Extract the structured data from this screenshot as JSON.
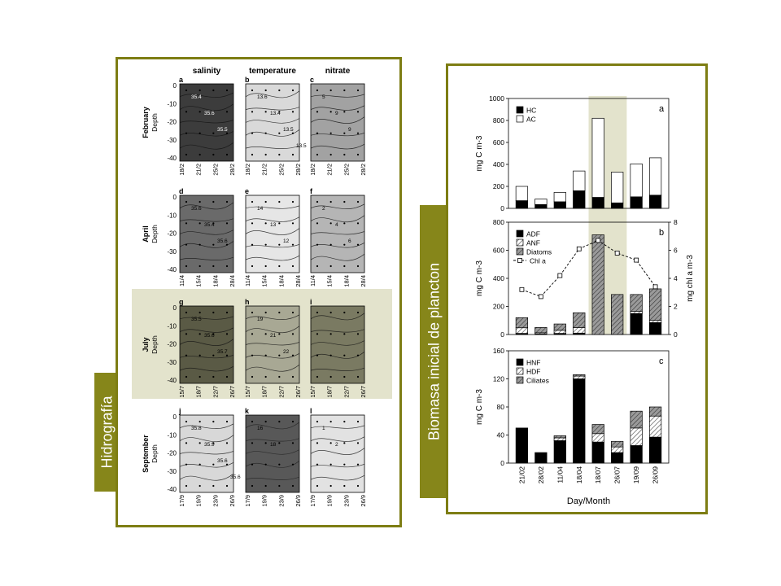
{
  "hydro": {
    "tag": "Hidrografía",
    "columns": [
      "salinity",
      "temperature",
      "nitrate"
    ],
    "axis_label": "Depth",
    "depth_ticks": [
      "0",
      "-10",
      "-20",
      "-30",
      "-40"
    ],
    "rows": [
      {
        "month": "February",
        "panels": [
          "a",
          "b",
          "c"
        ],
        "dates": [
          "18/2",
          "21/2",
          "25/2",
          "28/2"
        ],
        "shades": [
          "#3c3c3c",
          "#d9d9d9",
          "#a2a2a2"
        ],
        "contours": [
          [
            "35.4",
            "35.6",
            "35.5"
          ],
          [
            "13.6",
            "13.4",
            "13.5",
            "13.5"
          ],
          [
            "5",
            "9",
            "9"
          ]
        ]
      },
      {
        "month": "April",
        "panels": [
          "d",
          "e",
          "f"
        ],
        "dates": [
          "11/4",
          "15/4",
          "18/4",
          "28/4"
        ],
        "shades": [
          "#6a6a6a",
          "#e6e6e6",
          "#b5b5b5"
        ],
        "contours": [
          [
            "35.6",
            "35.4",
            "35.6"
          ],
          [
            "14",
            "13",
            "12"
          ],
          [
            "2",
            "4",
            "6"
          ]
        ]
      },
      {
        "month": "July",
        "panels": [
          "g",
          "h",
          "i"
        ],
        "dates": [
          "15/7",
          "18/7",
          "22/7",
          "26/7"
        ],
        "shades": [
          "#5a5a45",
          "#a8a894",
          "#7a7a62"
        ],
        "contours": [
          [
            "35.5",
            "35.6",
            "35.7"
          ],
          [
            "19",
            "21",
            "22"
          ],
          [
            "",
            "",
            ""
          ]
        ]
      },
      {
        "month": "September",
        "panels": [
          "j",
          "k",
          "l"
        ],
        "dates": [
          "17/9",
          "19/9",
          "23/9",
          "26/9"
        ],
        "shades": [
          "#d8d8d8",
          "#585858",
          "#e2e2e2"
        ],
        "contours": [
          [
            "35.8",
            "35.9",
            "35.6",
            "35.6"
          ],
          [
            "16",
            "18"
          ],
          [
            "1",
            "2"
          ]
        ]
      }
    ]
  },
  "plankton": {
    "tag": "Biomasa inicial de plancton",
    "xlabel": "Day/Month"
  },
  "chart_data": [
    {
      "type": "bar",
      "panel": "a",
      "ylabel": "mg C m-3",
      "ylim": [
        0,
        1000
      ],
      "yticks": [
        0,
        200,
        400,
        600,
        800,
        1000
      ],
      "categories": [
        "21/02",
        "28/02",
        "11/04",
        "18/04",
        "18/07",
        "26/07",
        "19/09",
        "26/09"
      ],
      "stacked": true,
      "series": [
        {
          "name": "HC",
          "values": [
            70,
            35,
            60,
            160,
            100,
            50,
            105,
            120
          ]
        },
        {
          "name": "AC",
          "values": [
            130,
            50,
            85,
            180,
            720,
            280,
            300,
            340
          ]
        }
      ]
    },
    {
      "type": "bar",
      "panel": "b",
      "ylabel": "mg C m-3",
      "ylabel_right": "mg chl a m-3",
      "ylim": [
        0,
        800
      ],
      "yticks": [
        0,
        200,
        400,
        600,
        800
      ],
      "ylim_right": [
        0,
        8
      ],
      "yticks_right": [
        0,
        2,
        4,
        6,
        8
      ],
      "categories": [
        "21/02",
        "28/02",
        "11/04",
        "18/04",
        "18/07",
        "26/07",
        "19/09",
        "26/09"
      ],
      "stacked": true,
      "series": [
        {
          "name": "ADF",
          "values": [
            8,
            4,
            8,
            10,
            0,
            0,
            150,
            85
          ]
        },
        {
          "name": "ANF",
          "values": [
            40,
            8,
            22,
            40,
            0,
            0,
            15,
            15
          ]
        },
        {
          "name": "Diatoms",
          "values": [
            72,
            38,
            45,
            105,
            710,
            285,
            120,
            225
          ]
        }
      ],
      "line": {
        "name": "Chl a",
        "values": [
          3.2,
          2.7,
          4.2,
          6.1,
          6.7,
          5.8,
          5.3,
          3.4
        ]
      }
    },
    {
      "type": "bar",
      "panel": "c",
      "ylabel": "mg C m-3",
      "ylim": [
        0,
        160
      ],
      "yticks": [
        0,
        40,
        80,
        120,
        160
      ],
      "categories": [
        "21/02",
        "28/02",
        "11/04",
        "18/04",
        "18/07",
        "26/07",
        "19/09",
        "26/09"
      ],
      "stacked": true,
      "series": [
        {
          "name": "HNF",
          "values": [
            50,
            15,
            32,
            120,
            30,
            15,
            25,
            37
          ]
        },
        {
          "name": "HDF",
          "values": [
            0,
            0,
            4,
            4,
            12,
            8,
            25,
            30
          ]
        },
        {
          "name": "Ciliates",
          "values": [
            0,
            0,
            3,
            2,
            13,
            8,
            24,
            13
          ]
        }
      ]
    }
  ]
}
